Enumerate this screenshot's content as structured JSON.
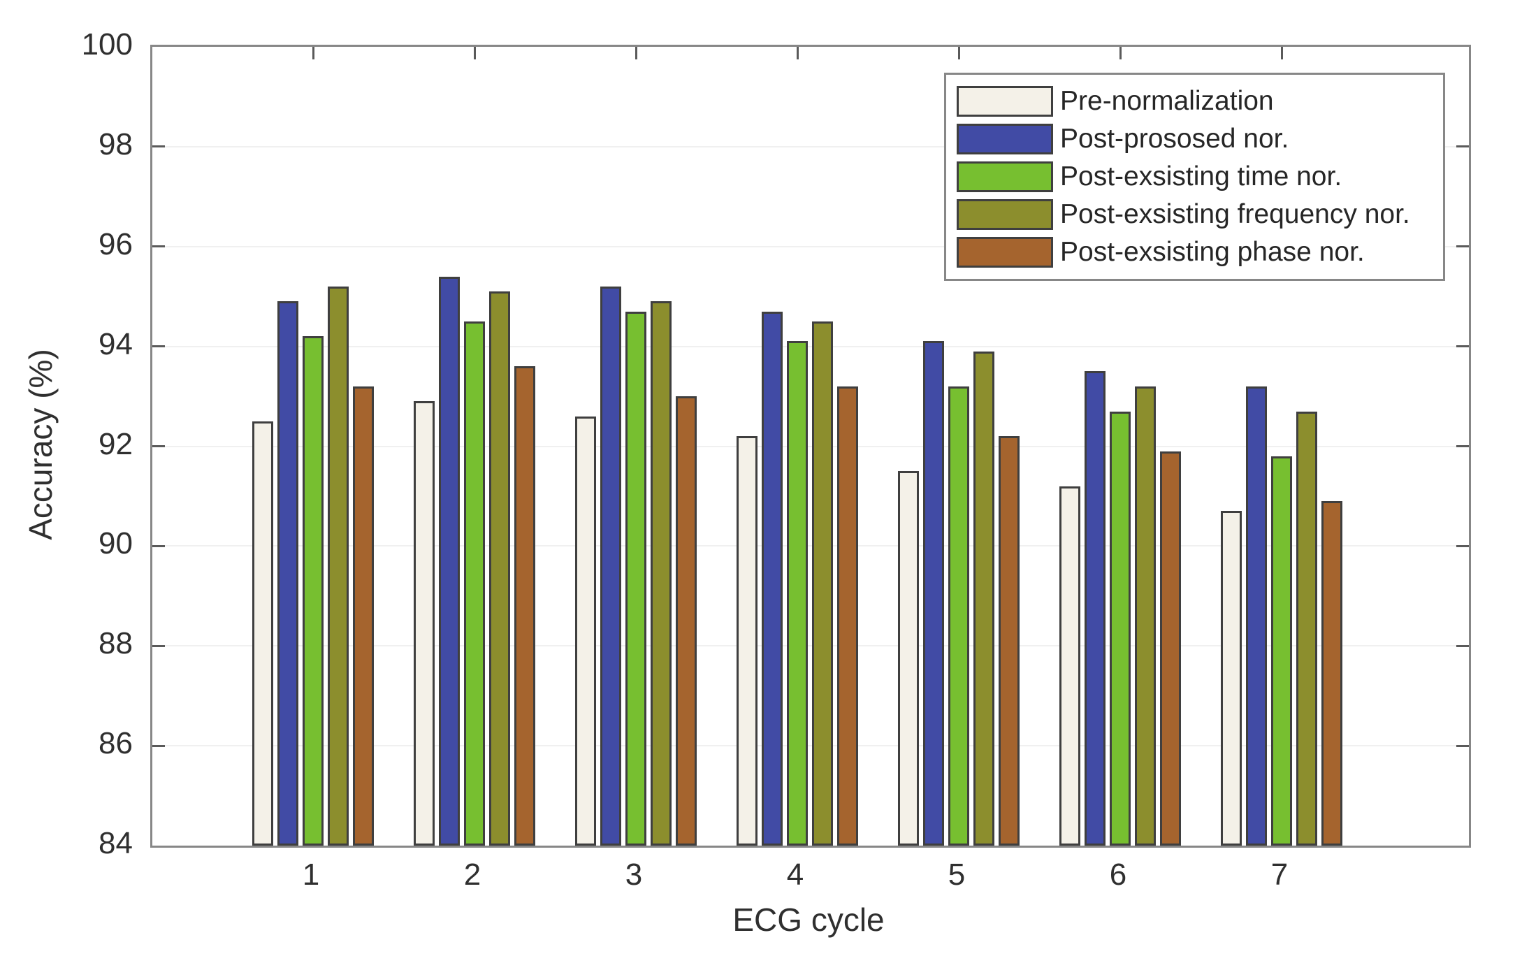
{
  "chart_data": {
    "type": "bar",
    "title": "",
    "xlabel": "ECG cycle",
    "ylabel": "Accuracy (%)",
    "categories": [
      "1",
      "2",
      "3",
      "4",
      "5",
      "6",
      "7"
    ],
    "series": [
      {
        "name": "Pre-normalization",
        "color": "#f4f1e8",
        "values": [
          92.5,
          92.9,
          92.6,
          92.2,
          91.5,
          91.2,
          90.7
        ]
      },
      {
        "name": "Post-prososed nor.",
        "color": "#414ba5",
        "values": [
          94.9,
          95.4,
          95.2,
          94.7,
          94.1,
          93.5,
          93.2
        ]
      },
      {
        "name": "Post-exsisting time nor.",
        "color": "#77bf30",
        "values": [
          94.2,
          94.5,
          94.7,
          94.1,
          93.2,
          92.7,
          91.8
        ]
      },
      {
        "name": "Post-exsisting frequency nor.",
        "color": "#8c8e2d",
        "values": [
          95.2,
          95.1,
          94.9,
          94.5,
          93.9,
          93.2,
          92.7
        ]
      },
      {
        "name": "Post-exsisting phase nor.",
        "color": "#a5642e",
        "values": [
          93.2,
          93.6,
          93.0,
          93.2,
          92.2,
          91.9,
          90.9
        ]
      }
    ],
    "ylim": [
      84,
      100
    ],
    "yticks": [
      84,
      86,
      88,
      90,
      92,
      94,
      96,
      98,
      100
    ],
    "grid": "horizontal-only",
    "legend_position": "top-right",
    "bar_edge_color": "#3f3f3f",
    "axis_frame_color": "#878787",
    "tick_color": "#5a5a5a",
    "grid_color": "#f0f0f0",
    "text_color": "#2f2f2f"
  }
}
